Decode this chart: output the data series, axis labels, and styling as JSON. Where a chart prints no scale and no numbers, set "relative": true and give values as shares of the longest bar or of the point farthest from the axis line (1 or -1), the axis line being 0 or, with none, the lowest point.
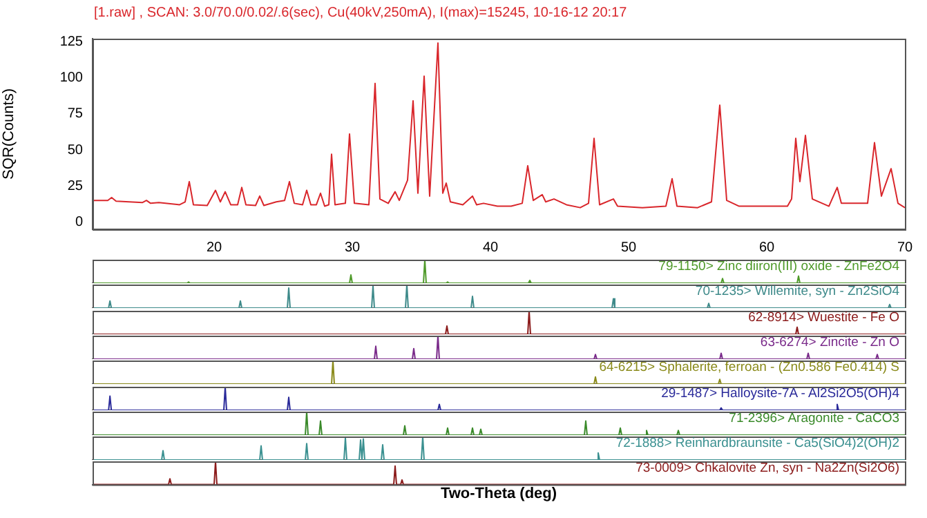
{
  "chart_data": [
    {
      "type": "line",
      "title": "[1.raw] , SCAN: 3.0/70.0/0.02/.6(sec), Cu(40kV,250mA), I(max)=15245, 10-16-12 20:17",
      "ylabel": "SQR(Counts)",
      "color": "#d9262b",
      "grid": false,
      "legend": false,
      "marker": "none",
      "x": [
        11.2,
        12.3,
        12.58,
        12.9,
        14.8,
        15.1,
        15.4,
        16.0,
        17.5,
        17.9,
        18.2,
        18.5,
        19.5,
        20.1,
        20.45,
        20.8,
        21.2,
        21.7,
        22.0,
        22.3,
        23.0,
        23.3,
        23.6,
        24.5,
        25.1,
        25.45,
        25.8,
        26.4,
        26.7,
        27.0,
        27.4,
        27.7,
        28.0,
        28.3,
        28.5,
        28.75,
        29.5,
        29.8,
        30.15,
        31.2,
        31.65,
        32.0,
        32.6,
        33.1,
        33.4,
        34.0,
        34.4,
        34.75,
        35.2,
        35.6,
        36.2,
        36.55,
        36.8,
        37.1,
        38.0,
        38.7,
        39.0,
        39.5,
        40.5,
        41.5,
        42.3,
        42.7,
        43.1,
        43.75,
        44.0,
        44.6,
        45.5,
        46.5,
        47.1,
        47.5,
        47.9,
        48.9,
        49.2,
        51,
        52.7,
        53.15,
        53.5,
        55,
        56.0,
        56.6,
        57.1,
        58,
        60,
        61.5,
        61.8,
        62.1,
        62.4,
        62.8,
        63.3,
        64.5,
        65.1,
        65.4,
        67.3,
        67.8,
        68.3,
        69.0,
        69.5,
        70
      ],
      "values": [
        15,
        15,
        17,
        14.5,
        13.5,
        15,
        13,
        13.5,
        12,
        14,
        28,
        12,
        11.5,
        22,
        14,
        21,
        12,
        12,
        24,
        12,
        11.5,
        18,
        11.5,
        14,
        15,
        28,
        13,
        12,
        22,
        12,
        12,
        20,
        11,
        12,
        47,
        12,
        13,
        61,
        13,
        12,
        96,
        16,
        13,
        21,
        15,
        29,
        84,
        20,
        101,
        18,
        124,
        20,
        27,
        14,
        12,
        18,
        12,
        13,
        11,
        11,
        13,
        39,
        15,
        19,
        14,
        16,
        12,
        10,
        13,
        58,
        12,
        16,
        11,
        10,
        11,
        30,
        11,
        10,
        14,
        81,
        15,
        11,
        11,
        11,
        16,
        58,
        28,
        60,
        16,
        11,
        24,
        13,
        13,
        55,
        18,
        37,
        13,
        10
      ],
      "xlim": [
        11.2,
        70
      ],
      "ylim": [
        -5,
        127
      ],
      "xticks": [
        20,
        30,
        40,
        50,
        60,
        70
      ],
      "yticks": [
        0,
        25,
        50,
        75,
        100,
        125
      ]
    },
    {
      "type": "line",
      "title": "79-1150> Zinc diiron(III) oxide - ZnFe2O4",
      "color": "#4f9a2a",
      "relative": true,
      "tick_labels": false,
      "xlim": [
        11.2,
        70
      ],
      "x": [
        11.2,
        18.05,
        18.15,
        18.25,
        29.8,
        29.9,
        30.0,
        35.15,
        35.25,
        35.35,
        36.8,
        36.9,
        37.0,
        42.75,
        42.85,
        42.95,
        56.7,
        56.8,
        56.9,
        62.2,
        62.3,
        62.4,
        70
      ],
      "values": [
        0,
        0,
        0.05,
        0,
        0,
        0.35,
        0,
        0,
        1,
        0,
        0,
        0.05,
        0,
        0,
        0.12,
        0,
        0,
        0.2,
        0,
        0,
        0.3,
        0,
        0
      ]
    },
    {
      "type": "line",
      "title": "70-1235> Willemite, syn - Zn2SiO4",
      "color": "#3e8a8a",
      "relative": true,
      "tick_labels": false,
      "xlim": [
        11.2,
        70
      ],
      "x": [
        11.2,
        12.36,
        12.46,
        12.56,
        21.8,
        21.9,
        22.0,
        25.3,
        25.4,
        25.5,
        31.4,
        31.5,
        31.6,
        33.85,
        33.95,
        34.05,
        38.6,
        38.7,
        38.8,
        48.8,
        48.9,
        49.0,
        55.7,
        55.8,
        55.9,
        68.8,
        68.9,
        69.0,
        70
      ],
      "values": [
        0,
        0,
        0.3,
        0,
        0,
        0.3,
        0,
        0,
        0.85,
        0,
        0,
        0.95,
        0,
        0,
        1,
        0,
        0,
        0.5,
        0,
        0,
        0.4,
        0,
        0,
        0.2,
        0,
        0,
        0.15,
        0,
        0
      ]
    },
    {
      "type": "line",
      "title": "62-8914> Wuestite - Fe O",
      "color": "#8b1a1a",
      "relative": true,
      "tick_labels": false,
      "xlim": [
        11.2,
        70
      ],
      "x": [
        11.2,
        36.75,
        36.85,
        36.95,
        42.7,
        42.8,
        42.9,
        62.1,
        62.2,
        62.3,
        70
      ],
      "values": [
        0,
        0,
        0.35,
        0,
        0,
        1,
        0,
        0,
        0.3,
        0,
        0
      ]
    },
    {
      "type": "line",
      "title": "63-6274> Zincite - Zn O",
      "color": "#7a2a8a",
      "relative": true,
      "tick_labels": false,
      "xlim": [
        11.2,
        70
      ],
      "x": [
        11.2,
        31.6,
        31.7,
        31.8,
        34.35,
        34.45,
        34.55,
        36.1,
        36.2,
        36.3,
        47.5,
        47.6,
        47.7,
        56.6,
        56.7,
        56.8,
        62.9,
        63.0,
        63.1,
        67.9,
        68.0,
        68.1,
        70
      ],
      "values": [
        0,
        0,
        0.55,
        0,
        0,
        0.45,
        0,
        0,
        1,
        0,
        0,
        0.2,
        0,
        0,
        0.25,
        0,
        0,
        0.25,
        0,
        0,
        0.2,
        0,
        0
      ]
    },
    {
      "type": "line",
      "title": "64-6215> Sphalerite, ferroan - (Zn0.586 Fe0.414) S",
      "color": "#8a8a1a",
      "relative": true,
      "tick_labels": false,
      "xlim": [
        11.2,
        70
      ],
      "x": [
        11.2,
        28.5,
        28.6,
        28.7,
        47.5,
        47.6,
        47.7,
        56.5,
        56.6,
        56.7,
        70
      ],
      "values": [
        0,
        0,
        1,
        0,
        0,
        0.3,
        0,
        0,
        0.2,
        0,
        0
      ]
    },
    {
      "type": "line",
      "title": "29-1487> Halloysite-7A - Al2Si2O5(OH)4",
      "color": "#2a2a9a",
      "relative": true,
      "tick_labels": false,
      "xlim": [
        11.2,
        70
      ],
      "x": [
        11.2,
        12.36,
        12.46,
        12.56,
        20.7,
        20.8,
        20.9,
        25.3,
        25.4,
        25.5,
        36.2,
        36.3,
        36.4,
        56.6,
        56.7,
        56.8,
        65.0,
        65.1,
        65.2,
        70
      ],
      "values": [
        0,
        0,
        0.6,
        0,
        0,
        1,
        0,
        0,
        0.55,
        0,
        0,
        0.25,
        0,
        0,
        0.1,
        0,
        0,
        0.25,
        0,
        0
      ]
    },
    {
      "type": "line",
      "title": "71-2396> Aragonite - CaCO3",
      "color": "#3a8a2a",
      "relative": true,
      "tick_labels": false,
      "xlim": [
        11.2,
        70
      ],
      "x": [
        11.2,
        26.6,
        26.7,
        26.8,
        27.6,
        27.7,
        27.8,
        33.7,
        33.8,
        33.9,
        36.8,
        36.9,
        37.0,
        38.6,
        38.7,
        38.8,
        39.2,
        39.3,
        39.4,
        46.8,
        46.9,
        47.0,
        49.3,
        49.4,
        49.5,
        51.2,
        51.3,
        51.4,
        53.5,
        53.6,
        53.7,
        70
      ],
      "values": [
        0,
        0,
        1,
        0,
        0,
        0.6,
        0,
        0,
        0.4,
        0,
        0,
        0.3,
        0,
        0,
        0.3,
        0,
        0,
        0.25,
        0,
        0,
        0.6,
        0,
        0,
        0.3,
        0,
        0,
        0.2,
        0,
        0,
        0.2,
        0,
        0
      ]
    },
    {
      "type": "line",
      "title": "72-1888> Reinhardbraunsite - Ca5(SiO4)2(OH)2",
      "color": "#3a9090",
      "relative": true,
      "tick_labels": false,
      "xlim": [
        11.2,
        70
      ],
      "x": [
        11.2,
        16.2,
        16.3,
        16.4,
        23.3,
        23.4,
        23.5,
        26.6,
        26.7,
        26.8,
        29.4,
        29.5,
        29.6,
        30.5,
        30.6,
        30.7,
        30.8,
        30.9,
        32.1,
        32.2,
        32.3,
        35.0,
        35.1,
        35.2,
        47.7,
        47.8,
        47.9,
        70
      ],
      "values": [
        0,
        0,
        0.4,
        0,
        0,
        0.6,
        0,
        0,
        0.7,
        0,
        0,
        0.95,
        0,
        0,
        0.85,
        0,
        0.9,
        0,
        0,
        0.65,
        0,
        0,
        1,
        0,
        0,
        0.3,
        0,
        0
      ]
    },
    {
      "type": "line",
      "title": "73-0009> Chkalovite Zn, syn - Na2Zn(Si2O6)",
      "xlabel": "Two-Theta (deg)",
      "color": "#8b1a1a",
      "relative": true,
      "tick_labels": false,
      "xlim": [
        11.2,
        70
      ],
      "x": [
        11.2,
        16.7,
        16.8,
        16.9,
        20.0,
        20.1,
        20.2,
        33.0,
        33.1,
        33.2,
        33.5,
        33.6,
        33.7,
        70
      ],
      "values": [
        0,
        0,
        0.25,
        0,
        0,
        1,
        0,
        0,
        0.8,
        0,
        0,
        0.2,
        0,
        0
      ]
    }
  ]
}
